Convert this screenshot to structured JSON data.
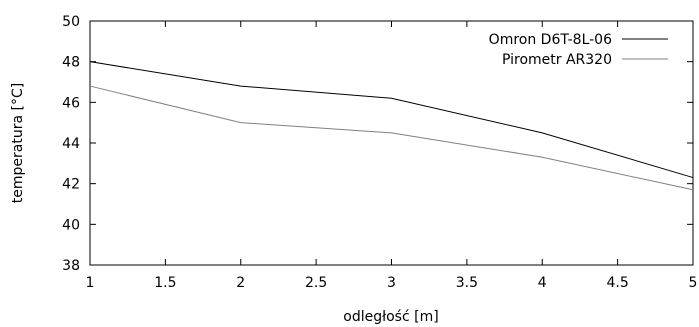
{
  "chart_data": {
    "type": "line",
    "title": "",
    "xlabel": "odległość [m]",
    "ylabel": "temperatura [°C]",
    "xlim": [
      1,
      5
    ],
    "ylim": [
      38,
      50
    ],
    "xticks": [
      1,
      1.5,
      2,
      2.5,
      3,
      3.5,
      4,
      4.5,
      5
    ],
    "yticks": [
      38,
      40,
      42,
      44,
      46,
      48,
      50
    ],
    "grid": false,
    "legend_position": "top-right",
    "x": [
      1,
      2,
      3,
      4,
      5
    ],
    "series": [
      {
        "name": "Omron D6T-8L-06",
        "color": "#000000",
        "values": [
          48.0,
          46.8,
          46.2,
          44.5,
          42.3
        ]
      },
      {
        "name": "Pirometr AR320",
        "color": "#808080",
        "values": [
          46.8,
          45.0,
          44.5,
          43.3,
          41.7
        ]
      }
    ]
  }
}
